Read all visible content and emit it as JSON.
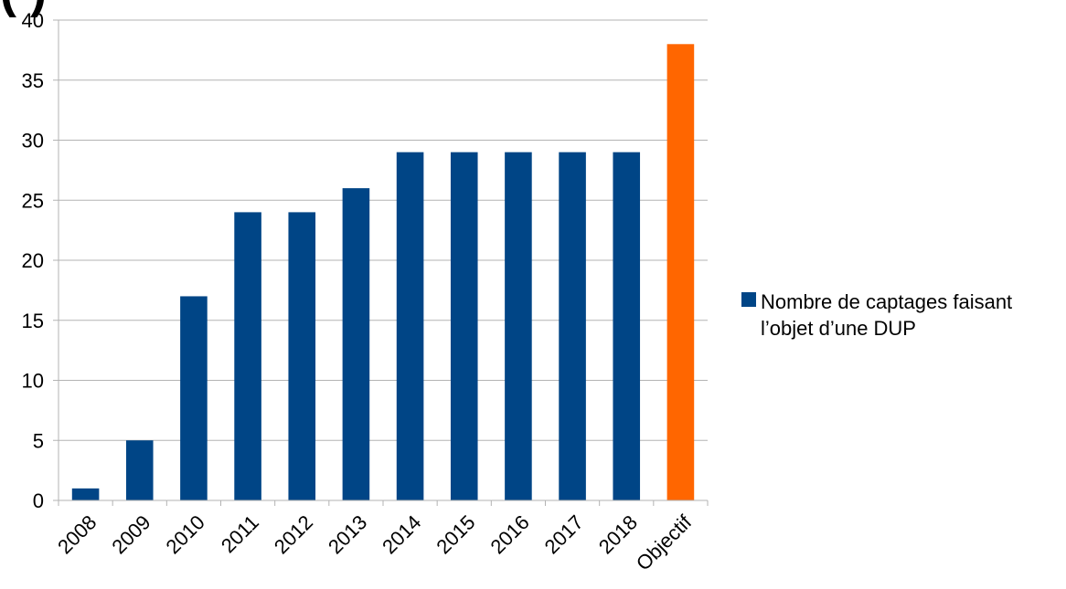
{
  "page": {
    "corner_text": "( )"
  },
  "chart_data": {
    "type": "bar",
    "title": "",
    "xlabel": "",
    "ylabel": "",
    "categories": [
      "2008",
      "2009",
      "2010",
      "2011",
      "2012",
      "2013",
      "2014",
      "2015",
      "2016",
      "2017",
      "2018",
      "Objectif"
    ],
    "series": [
      {
        "name": "Nombre de captages faisant l’objet d’une DUP",
        "values": [
          1,
          5,
          17,
          24,
          24,
          26,
          29,
          29,
          29,
          29,
          29,
          38
        ],
        "color": "#004586",
        "highlight": {
          "category": "Objectif",
          "color": "#ff6600"
        }
      }
    ],
    "legend_lines": [
      "Nombre de captages faisant",
      "l’objet d’une DUP"
    ],
    "legend_placement": "right",
    "ylim": [
      0,
      40
    ],
    "yticks": [
      "0",
      "5",
      "10",
      "15",
      "20",
      "25",
      "30",
      "35",
      "40"
    ],
    "grid": true,
    "gridline_color": "#b3b3b3"
  }
}
